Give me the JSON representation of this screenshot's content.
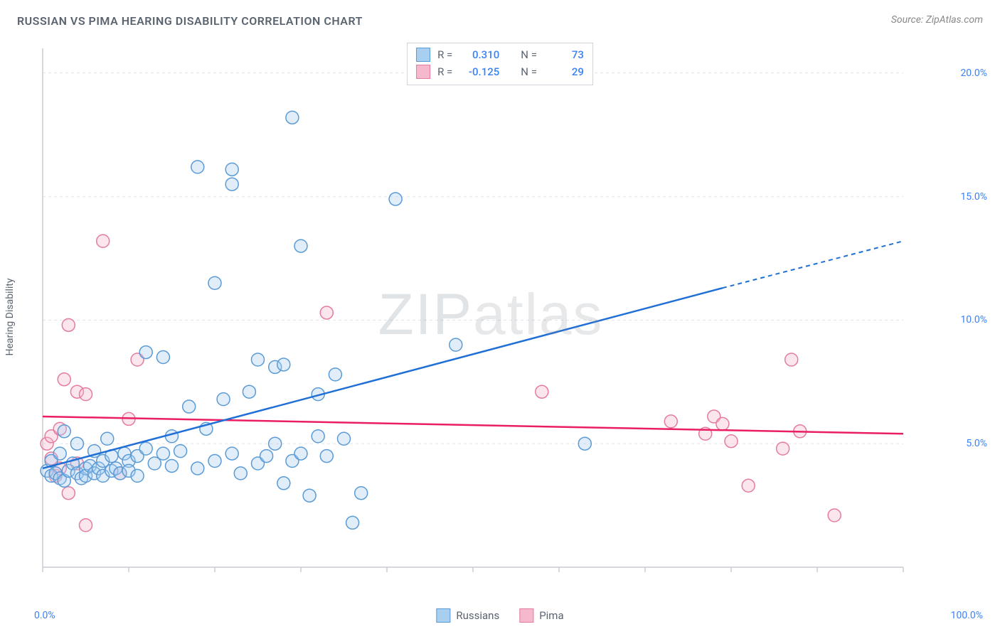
{
  "title": "RUSSIAN VS PIMA HEARING DISABILITY CORRELATION CHART",
  "source": "Source: ZipAtlas.com",
  "ylabel": "Hearing Disability",
  "watermark_a": "ZIP",
  "watermark_b": "atlas",
  "chart": {
    "type": "scatter",
    "xlim": [
      0,
      100
    ],
    "ylim": [
      0,
      21
    ],
    "xtick_positions": [
      0,
      10,
      20,
      30,
      40,
      50,
      60,
      70,
      80,
      90,
      100
    ],
    "xtick_labels_shown": {
      "0": "0.0%",
      "100": "100.0%"
    },
    "ytick_positions": [
      5,
      10,
      15,
      20
    ],
    "ytick_labels": {
      "5": "5.0%",
      "10": "10.0%",
      "15": "15.0%",
      "20": "20.0%"
    },
    "grid_color": "#e1e4e9",
    "grid_dash": "4,4",
    "axis_color": "#c8ccd2",
    "background_color": "#ffffff",
    "marker_radius": 9,
    "marker_stroke_width": 1.5,
    "marker_fill_opacity": 0.35,
    "trend_line_width": 2.5,
    "trend_dashed_width": 2,
    "trend_dash": "6,5"
  },
  "series": {
    "russians": {
      "label": "Russians",
      "color_stroke": "#5b9bd5",
      "color_fill": "#a8cff0",
      "trend_color": "#1f6fd6",
      "R": "0.310",
      "N": "73",
      "trend": {
        "x1": 0,
        "y1": 4.0,
        "x2": 79,
        "y2": 11.3,
        "x2_ext": 100,
        "y2_ext": 13.2
      },
      "points": [
        [
          0.5,
          3.9
        ],
        [
          1,
          3.7
        ],
        [
          1,
          4.3
        ],
        [
          1.5,
          3.8
        ],
        [
          2,
          4.6
        ],
        [
          2,
          3.6
        ],
        [
          2.5,
          3.5
        ],
        [
          2.5,
          5.5
        ],
        [
          3,
          3.9
        ],
        [
          3.5,
          4.2
        ],
        [
          4,
          3.8
        ],
        [
          4,
          5.0
        ],
        [
          4.5,
          3.6
        ],
        [
          5,
          4.0
        ],
        [
          5,
          3.7
        ],
        [
          5.5,
          4.1
        ],
        [
          6,
          3.8
        ],
        [
          6,
          4.7
        ],
        [
          6.5,
          4.0
        ],
        [
          7,
          4.3
        ],
        [
          7,
          3.7
        ],
        [
          7.5,
          5.2
        ],
        [
          8,
          3.9
        ],
        [
          8,
          4.5
        ],
        [
          8.5,
          4.0
        ],
        [
          9,
          3.8
        ],
        [
          9.5,
          4.6
        ],
        [
          10,
          4.3
        ],
        [
          10,
          3.9
        ],
        [
          11,
          4.5
        ],
        [
          11,
          3.7
        ],
        [
          12,
          4.8
        ],
        [
          12,
          8.7
        ],
        [
          13,
          4.2
        ],
        [
          14,
          4.6
        ],
        [
          14,
          8.5
        ],
        [
          15,
          4.1
        ],
        [
          15,
          5.3
        ],
        [
          16,
          4.7
        ],
        [
          17,
          6.5
        ],
        [
          18,
          4.0
        ],
        [
          18,
          16.2
        ],
        [
          19,
          5.6
        ],
        [
          20,
          4.3
        ],
        [
          20,
          11.5
        ],
        [
          21,
          6.8
        ],
        [
          22,
          16.1
        ],
        [
          22,
          15.5
        ],
        [
          22,
          4.6
        ],
        [
          23,
          3.8
        ],
        [
          24,
          7.1
        ],
        [
          25,
          4.2
        ],
        [
          25,
          8.4
        ],
        [
          26,
          4.5
        ],
        [
          27,
          8.1
        ],
        [
          27,
          5.0
        ],
        [
          28,
          3.4
        ],
        [
          28,
          8.2
        ],
        [
          29,
          4.3
        ],
        [
          29,
          18.2
        ],
        [
          30,
          4.6
        ],
        [
          30,
          13.0
        ],
        [
          31,
          2.9
        ],
        [
          32,
          7.0
        ],
        [
          32,
          5.3
        ],
        [
          33,
          4.5
        ],
        [
          34,
          7.8
        ],
        [
          35,
          5.2
        ],
        [
          36,
          1.8
        ],
        [
          37,
          3.0
        ],
        [
          41,
          14.9
        ],
        [
          48,
          9.0
        ],
        [
          63,
          5.0
        ]
      ]
    },
    "pima": {
      "label": "Pima",
      "color_stroke": "#e57ba0",
      "color_fill": "#f5b8cd",
      "trend_color": "#e91e63",
      "R": "-0.125",
      "N": "29",
      "trend": {
        "x1": 0,
        "y1": 6.1,
        "x2": 100,
        "y2": 5.4
      },
      "points": [
        [
          0.5,
          5.0
        ],
        [
          1,
          5.3
        ],
        [
          1,
          4.4
        ],
        [
          1.5,
          3.7
        ],
        [
          2,
          5.6
        ],
        [
          2,
          4.0
        ],
        [
          2.5,
          7.6
        ],
        [
          3,
          3.0
        ],
        [
          3,
          9.8
        ],
        [
          4,
          7.1
        ],
        [
          4,
          4.2
        ],
        [
          5,
          7.0
        ],
        [
          5,
          1.7
        ],
        [
          7,
          13.2
        ],
        [
          9,
          3.8
        ],
        [
          10,
          6.0
        ],
        [
          11,
          8.4
        ],
        [
          33,
          10.3
        ],
        [
          58,
          7.1
        ],
        [
          73,
          5.9
        ],
        [
          77,
          5.4
        ],
        [
          78,
          6.1
        ],
        [
          79,
          5.8
        ],
        [
          80,
          5.1
        ],
        [
          82,
          3.3
        ],
        [
          86,
          4.8
        ],
        [
          87,
          8.4
        ],
        [
          88,
          5.5
        ],
        [
          92,
          2.1
        ]
      ]
    }
  },
  "legend_top": {
    "r_label": "R =",
    "n_label": "N ="
  }
}
